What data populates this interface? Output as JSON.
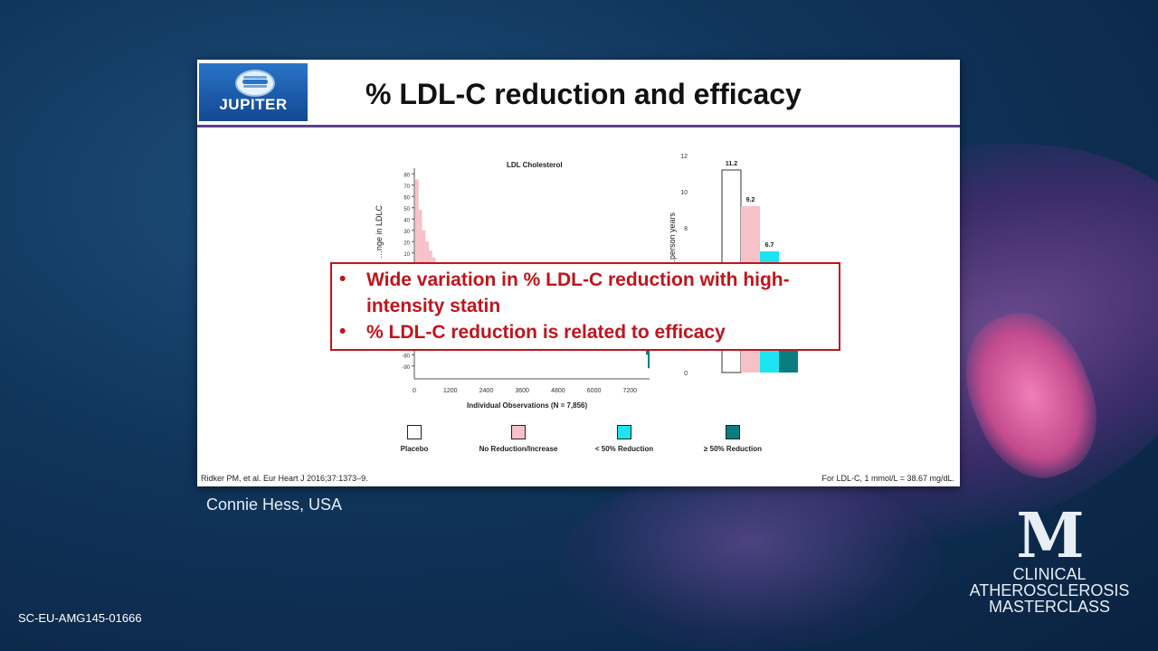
{
  "slide": {
    "logo_text": "JUPITER",
    "title": "% LDL-C reduction and efficacy",
    "citation": "Ridker PM, et al. Eur Heart J 2016;37:1373–9.",
    "footnote": "For LDL-C, 1 mmol/L = 38.67 mg/dL."
  },
  "callout": {
    "bullets": [
      {
        "marker": "•",
        "text": "Wide variation in % LDL-C reduction with high-intensity statin"
      },
      {
        "marker": "•",
        "text": "% LDL-C reduction is related to efficacy"
      }
    ]
  },
  "legend": [
    {
      "label": "Placebo",
      "color": "#ffffff"
    },
    {
      "label": "No Reduction/Increase",
      "color": "#f7c1c7"
    },
    {
      "label": "< 50% Reduction",
      "color": "#1ee3f0"
    },
    {
      "label": "≥ 50% Reduction",
      "color": "#0b7d80"
    }
  ],
  "chart_data": [
    {
      "type": "bar",
      "title": "LDL Cholesterol",
      "ylabel": "…nge in LDLC",
      "xlabel": "Individual Observations (N = 7,856)",
      "x_ticks": [
        "0",
        "1200",
        "2400",
        "3600",
        "4800",
        "6000",
        "7200"
      ],
      "y_ticks": [
        "80",
        "70",
        "60",
        "50",
        "40",
        "30",
        "20",
        "10",
        "-80",
        "-90"
      ],
      "xlim": [
        0,
        7856
      ],
      "ylim": [
        -95,
        85
      ],
      "series": [
        {
          "name": "No Reduction/Increase",
          "values": [
            75,
            48,
            30,
            20,
            12,
            6,
            2,
            0
          ]
        },
        {
          "name": "≥ 50% Reduction",
          "values": [
            -70,
            -80,
            -92
          ]
        }
      ]
    },
    {
      "type": "bar",
      "ylabel": "…person years",
      "y_ticks": [
        "12",
        "10",
        "8",
        "0"
      ],
      "ylim": [
        0,
        12
      ],
      "categories": [
        "Placebo",
        "No Reduction/Increase",
        "< 50% Reduction",
        "≥ 50% Reduction"
      ],
      "values": [
        11.2,
        9.2,
        6.7,
        4.0
      ],
      "value_labels": [
        "11.2",
        "9.2",
        "6.7",
        ""
      ]
    }
  ],
  "presenter": "Connie Hess, USA",
  "code": "SC-EU-AMG145-01666",
  "brand": {
    "mark": "M",
    "line1": "CLINICAL",
    "line2": "ATHEROSCLEROSIS",
    "line3": "MASTERCLASS"
  }
}
